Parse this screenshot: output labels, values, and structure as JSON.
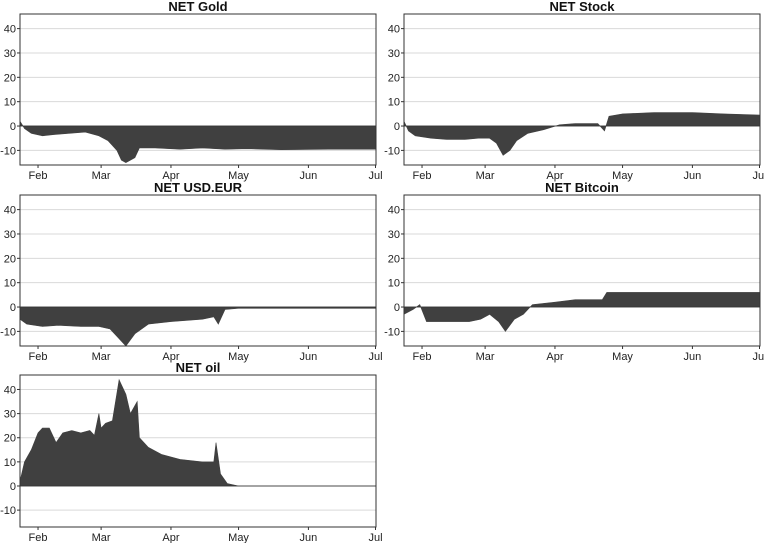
{
  "chart_data": [
    {
      "type": "area",
      "title": "NET Gold",
      "xlabel": "",
      "ylabel": "",
      "ylim": [
        -16,
        46
      ],
      "xlim": [
        "2021-01-24",
        "2021-07-01"
      ],
      "yticks": [
        40,
        30,
        20,
        10,
        0,
        -10
      ],
      "xticks": [
        {
          "date": "2021-02-01",
          "label": "Feb"
        },
        {
          "date": "2021-03-01",
          "label": "Mar"
        },
        {
          "date": "2021-04-01",
          "label": "Apr"
        },
        {
          "date": "2021-05-01",
          "label": "May"
        },
        {
          "date": "2021-06-01",
          "label": "Jun"
        },
        {
          "date": "2021-07-01",
          "label": "Jul"
        }
      ],
      "grid": true,
      "color": "#404040",
      "series": [
        {
          "x": [
            "2021-01-24",
            "2021-01-26",
            "2021-01-29",
            "2021-02-03",
            "2021-02-08",
            "2021-02-15",
            "2021-02-22",
            "2021-02-28",
            "2021-03-04",
            "2021-03-08",
            "2021-03-10",
            "2021-03-12",
            "2021-03-16",
            "2021-03-18",
            "2021-03-25",
            "2021-04-05",
            "2021-04-15",
            "2021-04-25",
            "2021-05-05",
            "2021-05-20",
            "2021-06-10",
            "2021-07-01"
          ],
          "values": [
            2,
            -1,
            -3,
            -4,
            -3.5,
            -3,
            -2.5,
            -4,
            -6,
            -10,
            -14,
            -15,
            -13,
            -9,
            -9,
            -9.5,
            -9,
            -9.5,
            -9.3,
            -9.7,
            -9.5,
            -9.5
          ]
        }
      ]
    },
    {
      "type": "area",
      "title": "NET Stock",
      "xlabel": "",
      "ylabel": "",
      "ylim": [
        -16,
        46
      ],
      "xlim": [
        "2021-01-24",
        "2021-07-01"
      ],
      "yticks": [
        40,
        30,
        20,
        10,
        0,
        -10
      ],
      "xticks": [
        {
          "date": "2021-02-01",
          "label": "Feb"
        },
        {
          "date": "2021-03-01",
          "label": "Mar"
        },
        {
          "date": "2021-04-01",
          "label": "Apr"
        },
        {
          "date": "2021-05-01",
          "label": "May"
        },
        {
          "date": "2021-06-01",
          "label": "Jun"
        },
        {
          "date": "2021-07-01",
          "label": "Jul"
        }
      ],
      "grid": true,
      "color": "#404040",
      "series": [
        {
          "x": [
            "2021-01-24",
            "2021-01-26",
            "2021-01-29",
            "2021-02-05",
            "2021-02-12",
            "2021-02-20",
            "2021-02-26",
            "2021-03-03",
            "2021-03-06",
            "2021-03-09",
            "2021-03-12",
            "2021-03-15",
            "2021-03-20",
            "2021-03-27",
            "2021-04-03",
            "2021-04-10",
            "2021-04-20",
            "2021-04-23",
            "2021-04-25",
            "2021-05-01",
            "2021-05-15",
            "2021-06-01",
            "2021-06-15",
            "2021-07-01"
          ],
          "values": [
            2,
            -2,
            -4,
            -5,
            -5.5,
            -5.5,
            -5,
            -5,
            -7,
            -12,
            -10,
            -6,
            -3,
            -1.5,
            0.5,
            1,
            1,
            -2,
            4,
            5,
            5.5,
            5.5,
            5,
            4.5
          ]
        }
      ]
    },
    {
      "type": "area",
      "title": "NET USD.EUR",
      "xlabel": "",
      "ylabel": "",
      "ylim": [
        -16,
        46
      ],
      "xlim": [
        "2021-01-24",
        "2021-07-01"
      ],
      "yticks": [
        40,
        30,
        20,
        10,
        0,
        -10
      ],
      "xticks": [
        {
          "date": "2021-02-01",
          "label": "Feb"
        },
        {
          "date": "2021-03-01",
          "label": "Mar"
        },
        {
          "date": "2021-04-01",
          "label": "Apr"
        },
        {
          "date": "2021-05-01",
          "label": "May"
        },
        {
          "date": "2021-06-01",
          "label": "Jun"
        },
        {
          "date": "2021-07-01",
          "label": "Jul"
        }
      ],
      "grid": true,
      "color": "#404040",
      "series": [
        {
          "x": [
            "2021-01-24",
            "2021-01-27",
            "2021-02-03",
            "2021-02-10",
            "2021-02-20",
            "2021-02-28",
            "2021-03-05",
            "2021-03-09",
            "2021-03-12",
            "2021-03-16",
            "2021-03-22",
            "2021-04-01",
            "2021-04-15",
            "2021-04-20",
            "2021-04-22",
            "2021-04-25",
            "2021-05-01",
            "2021-07-01"
          ],
          "values": [
            -5,
            -7,
            -8,
            -7.5,
            -8,
            -8,
            -9,
            -13,
            -16,
            -11,
            -7,
            -6,
            -5,
            -4,
            -7,
            -1,
            -0.5,
            -0.5
          ]
        }
      ]
    },
    {
      "type": "area",
      "title": "NET Bitcoin",
      "xlabel": "",
      "ylabel": "",
      "ylim": [
        -16,
        46
      ],
      "xlim": [
        "2021-01-24",
        "2021-07-01"
      ],
      "yticks": [
        40,
        30,
        20,
        10,
        0,
        -10
      ],
      "xticks": [
        {
          "date": "2021-02-01",
          "label": "Feb"
        },
        {
          "date": "2021-03-01",
          "label": "Mar"
        },
        {
          "date": "2021-04-01",
          "label": "Apr"
        },
        {
          "date": "2021-05-01",
          "label": "May"
        },
        {
          "date": "2021-06-01",
          "label": "Jun"
        },
        {
          "date": "2021-07-01",
          "label": "Jul"
        }
      ],
      "grid": true,
      "color": "#404040",
      "series": [
        {
          "x": [
            "2021-01-24",
            "2021-01-28",
            "2021-01-31",
            "2021-02-03",
            "2021-02-12",
            "2021-02-22",
            "2021-02-27",
            "2021-03-03",
            "2021-03-07",
            "2021-03-10",
            "2021-03-14",
            "2021-03-18",
            "2021-03-22",
            "2021-04-01",
            "2021-04-10",
            "2021-04-22",
            "2021-04-24",
            "2021-05-15",
            "2021-06-10",
            "2021-07-01"
          ],
          "values": [
            -3,
            -1,
            1,
            -6,
            -6,
            -6,
            -5,
            -3,
            -6,
            -10,
            -5,
            -3,
            1,
            2,
            3,
            3,
            6,
            6,
            6,
            6
          ]
        }
      ]
    },
    {
      "type": "area",
      "title": "NET oil",
      "xlabel": "",
      "ylabel": "",
      "ylim": [
        -17,
        46
      ],
      "xlim": [
        "2021-01-24",
        "2021-07-01"
      ],
      "yticks": [
        40,
        30,
        20,
        10,
        0,
        -10
      ],
      "xticks": [
        {
          "date": "2021-02-01",
          "label": "Feb"
        },
        {
          "date": "2021-03-01",
          "label": "Mar"
        },
        {
          "date": "2021-04-01",
          "label": "Apr"
        },
        {
          "date": "2021-05-01",
          "label": "May"
        },
        {
          "date": "2021-06-01",
          "label": "Jun"
        },
        {
          "date": "2021-07-01",
          "label": "Jul"
        }
      ],
      "grid": true,
      "color": "#404040",
      "series": [
        {
          "x": [
            "2021-01-24",
            "2021-01-26",
            "2021-01-29",
            "2021-02-01",
            "2021-02-03",
            "2021-02-06",
            "2021-02-09",
            "2021-02-12",
            "2021-02-16",
            "2021-02-20",
            "2021-02-24",
            "2021-02-26",
            "2021-02-28",
            "2021-03-01",
            "2021-03-03",
            "2021-03-06",
            "2021-03-09",
            "2021-03-10",
            "2021-03-12",
            "2021-03-14",
            "2021-03-17",
            "2021-03-18",
            "2021-03-22",
            "2021-03-28",
            "2021-04-05",
            "2021-04-15",
            "2021-04-20",
            "2021-04-21",
            "2021-04-23",
            "2021-04-26",
            "2021-05-01",
            "2021-07-01"
          ],
          "values": [
            2,
            10,
            15,
            22,
            24,
            24,
            18,
            22,
            23,
            22,
            23,
            21,
            30,
            24,
            26,
            27,
            44,
            42,
            38,
            30,
            35,
            20,
            16,
            13,
            11,
            10,
            10,
            18,
            5,
            1,
            0,
            0
          ]
        }
      ]
    }
  ]
}
